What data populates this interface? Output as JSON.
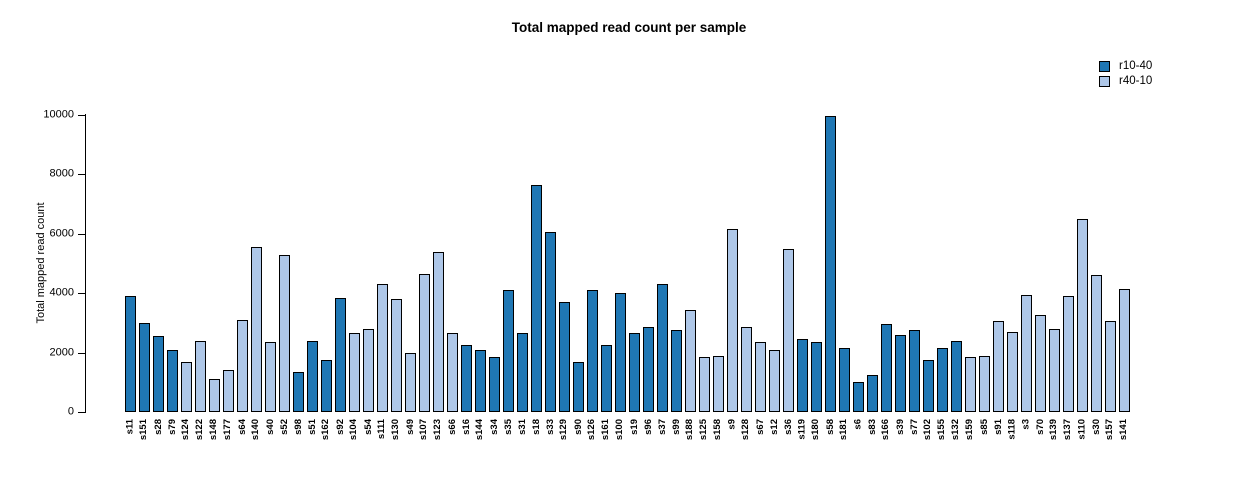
{
  "title": "Total mapped read count per sample",
  "legend": [
    {
      "label": "r10-40",
      "color": "#1f77b4"
    },
    {
      "label": "r40-10",
      "color": "#aec7e8"
    }
  ],
  "chart_data": {
    "type": "bar",
    "title": "Total mapped read count per sample",
    "xlabel": "",
    "ylabel": "Total mapped read count",
    "ylim": [
      0,
      10000
    ],
    "yticks": [
      0,
      2000,
      4000,
      6000,
      8000,
      10000
    ],
    "grid": false,
    "legend_position": "top-right",
    "series_colors": {
      "r10-40": "#1f77b4",
      "r40-10": "#aec7e8"
    },
    "bars": [
      {
        "sample": "s11",
        "value": 3900,
        "group": "r10-40"
      },
      {
        "sample": "s151",
        "value": 3000,
        "group": "r10-40"
      },
      {
        "sample": "s28",
        "value": 2550,
        "group": "r10-40"
      },
      {
        "sample": "s79",
        "value": 2100,
        "group": "r10-40"
      },
      {
        "sample": "s124",
        "value": 1700,
        "group": "r40-10"
      },
      {
        "sample": "s122",
        "value": 2400,
        "group": "r40-10"
      },
      {
        "sample": "s148",
        "value": 1100,
        "group": "r40-10"
      },
      {
        "sample": "s177",
        "value": 1400,
        "group": "r40-10"
      },
      {
        "sample": "s64",
        "value": 3100,
        "group": "r40-10"
      },
      {
        "sample": "s140",
        "value": 5550,
        "group": "r40-10"
      },
      {
        "sample": "s40",
        "value": 2350,
        "group": "r40-10"
      },
      {
        "sample": "s52",
        "value": 5300,
        "group": "r40-10"
      },
      {
        "sample": "s98",
        "value": 1350,
        "group": "r10-40"
      },
      {
        "sample": "s51",
        "value": 2400,
        "group": "r10-40"
      },
      {
        "sample": "s162",
        "value": 1750,
        "group": "r10-40"
      },
      {
        "sample": "s92",
        "value": 3850,
        "group": "r10-40"
      },
      {
        "sample": "s104",
        "value": 2650,
        "group": "r40-10"
      },
      {
        "sample": "s54",
        "value": 2800,
        "group": "r40-10"
      },
      {
        "sample": "s111",
        "value": 4300,
        "group": "r40-10"
      },
      {
        "sample": "s130",
        "value": 3800,
        "group": "r40-10"
      },
      {
        "sample": "s49",
        "value": 2000,
        "group": "r40-10"
      },
      {
        "sample": "s107",
        "value": 4650,
        "group": "r40-10"
      },
      {
        "sample": "s123",
        "value": 5400,
        "group": "r40-10"
      },
      {
        "sample": "s66",
        "value": 2650,
        "group": "r40-10"
      },
      {
        "sample": "s16",
        "value": 2250,
        "group": "r10-40"
      },
      {
        "sample": "s144",
        "value": 2100,
        "group": "r10-40"
      },
      {
        "sample": "s34",
        "value": 1850,
        "group": "r10-40"
      },
      {
        "sample": "s35",
        "value": 4100,
        "group": "r10-40"
      },
      {
        "sample": "s31",
        "value": 2650,
        "group": "r10-40"
      },
      {
        "sample": "s18",
        "value": 7650,
        "group": "r10-40"
      },
      {
        "sample": "s33",
        "value": 6050,
        "group": "r10-40"
      },
      {
        "sample": "s129",
        "value": 3700,
        "group": "r10-40"
      },
      {
        "sample": "s90",
        "value": 1700,
        "group": "r10-40"
      },
      {
        "sample": "s126",
        "value": 4100,
        "group": "r10-40"
      },
      {
        "sample": "s161",
        "value": 2250,
        "group": "r10-40"
      },
      {
        "sample": "s100",
        "value": 4000,
        "group": "r10-40"
      },
      {
        "sample": "s19",
        "value": 2650,
        "group": "r10-40"
      },
      {
        "sample": "s96",
        "value": 2850,
        "group": "r10-40"
      },
      {
        "sample": "s37",
        "value": 4300,
        "group": "r10-40"
      },
      {
        "sample": "s99",
        "value": 2750,
        "group": "r10-40"
      },
      {
        "sample": "s188",
        "value": 3450,
        "group": "r40-10"
      },
      {
        "sample": "s125",
        "value": 1850,
        "group": "r40-10"
      },
      {
        "sample": "s158",
        "value": 1900,
        "group": "r40-10"
      },
      {
        "sample": "s9",
        "value": 6150,
        "group": "r40-10"
      },
      {
        "sample": "s128",
        "value": 2850,
        "group": "r40-10"
      },
      {
        "sample": "s67",
        "value": 2350,
        "group": "r40-10"
      },
      {
        "sample": "s12",
        "value": 2100,
        "group": "r40-10"
      },
      {
        "sample": "s36",
        "value": 5500,
        "group": "r40-10"
      },
      {
        "sample": "s119",
        "value": 2450,
        "group": "r10-40"
      },
      {
        "sample": "s180",
        "value": 2350,
        "group": "r10-40"
      },
      {
        "sample": "s58",
        "value": 9950,
        "group": "r10-40"
      },
      {
        "sample": "s181",
        "value": 2150,
        "group": "r10-40"
      },
      {
        "sample": "s6",
        "value": 1000,
        "group": "r10-40"
      },
      {
        "sample": "s83",
        "value": 1250,
        "group": "r10-40"
      },
      {
        "sample": "s166",
        "value": 2950,
        "group": "r10-40"
      },
      {
        "sample": "s39",
        "value": 2600,
        "group": "r10-40"
      },
      {
        "sample": "s77",
        "value": 2750,
        "group": "r10-40"
      },
      {
        "sample": "s102",
        "value": 1750,
        "group": "r10-40"
      },
      {
        "sample": "s155",
        "value": 2150,
        "group": "r10-40"
      },
      {
        "sample": "s132",
        "value": 2400,
        "group": "r10-40"
      },
      {
        "sample": "s159",
        "value": 1850,
        "group": "r40-10"
      },
      {
        "sample": "s85",
        "value": 1900,
        "group": "r40-10"
      },
      {
        "sample": "s91",
        "value": 3050,
        "group": "r40-10"
      },
      {
        "sample": "s118",
        "value": 2700,
        "group": "r40-10"
      },
      {
        "sample": "s3",
        "value": 3950,
        "group": "r40-10"
      },
      {
        "sample": "s70",
        "value": 3250,
        "group": "r40-10"
      },
      {
        "sample": "s139",
        "value": 2800,
        "group": "r40-10"
      },
      {
        "sample": "s137",
        "value": 3900,
        "group": "r40-10"
      },
      {
        "sample": "s110",
        "value": 6500,
        "group": "r40-10"
      },
      {
        "sample": "s30",
        "value": 4600,
        "group": "r40-10"
      },
      {
        "sample": "s157",
        "value": 3050,
        "group": "r40-10"
      },
      {
        "sample": "s141",
        "value": 4150,
        "group": "r40-10"
      }
    ]
  }
}
